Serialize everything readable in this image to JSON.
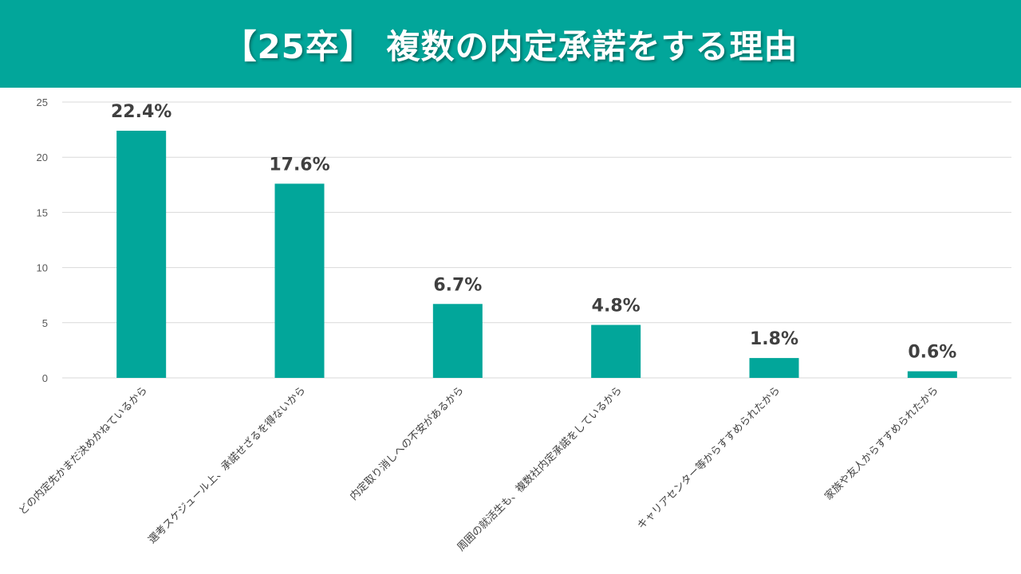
{
  "header": {
    "title": "【25卒】 複数の内定承諾をする理由"
  },
  "colors": {
    "accent": "#02a69a",
    "bar": "#02a69a",
    "grid": "#d9d9d9",
    "label": "#404040"
  },
  "chart_data": {
    "type": "bar",
    "title": "【25卒】 複数の内定承諾をする理由",
    "xlabel": "",
    "ylabel": "",
    "ylim": [
      0,
      25
    ],
    "yticks": [
      0,
      5,
      10,
      15,
      20,
      25
    ],
    "grid": true,
    "categories": [
      "どの内定先かまだ決めかねているから",
      "選考スケジュール上、承諾せざるを得ないから",
      "内定取り消しへの不安があるから",
      "周囲の就活生も、複数社内定承諾をしているから",
      "キャリアセンター等からすすめられたから",
      "家族や友人からすすめられたから"
    ],
    "values": [
      22.4,
      17.6,
      6.7,
      4.8,
      1.8,
      0.6
    ],
    "data_labels": [
      "22.4%",
      "17.6%",
      "6.7%",
      "4.8%",
      "1.8%",
      "0.6%"
    ]
  }
}
